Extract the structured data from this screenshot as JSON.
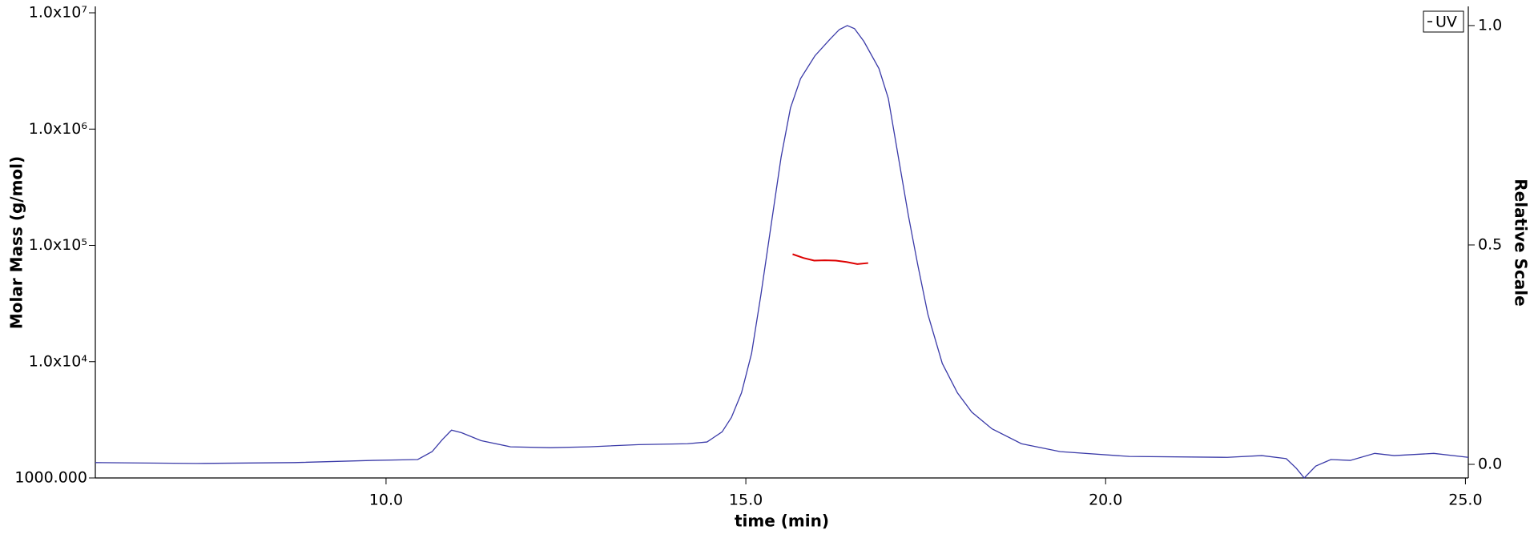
{
  "chart_data": {
    "type": "line",
    "xlabel": "time (min)",
    "ylabel": "Molar Mass (g/mol)",
    "y2label": "Relative Scale",
    "xlim": [
      5.96,
      25.04
    ],
    "xticks": [
      {
        "value": 10,
        "label": "10.0"
      },
      {
        "value": 15,
        "label": "15.0"
      },
      {
        "value": 20,
        "label": "20.0"
      },
      {
        "value": 25,
        "label": "25.0"
      }
    ],
    "ylim": [
      1000,
      11000000
    ],
    "yscale": "log",
    "yticks": [
      {
        "value": 1000,
        "label": "1000.000"
      },
      {
        "value": 10000,
        "label": "1.0x10⁴"
      },
      {
        "value": 100000,
        "label": "1.0x10⁵"
      },
      {
        "value": 1000000,
        "label": "1.0x10⁶"
      },
      {
        "value": 10000000,
        "label": "1.0x10⁷"
      }
    ],
    "y2lim": [
      -0.031,
      1.04
    ],
    "y2ticks": [
      {
        "value": 0,
        "label": "0.0"
      },
      {
        "value": 0.5,
        "label": "0.5"
      },
      {
        "value": 1,
        "label": "1.0"
      }
    ],
    "legend": "upper right",
    "series": [
      {
        "name": "UV",
        "color": "#3a3aa8",
        "axis": "y2",
        "x": [
          5.96,
          7.37,
          8.73,
          9.82,
          10.44,
          10.64,
          10.78,
          10.91,
          11.05,
          11.32,
          11.73,
          12.28,
          12.82,
          13.51,
          14.19,
          14.46,
          14.67,
          14.8,
          14.94,
          15.08,
          15.21,
          15.35,
          15.49,
          15.62,
          15.76,
          15.96,
          16.17,
          16.3,
          16.41,
          16.51,
          16.64,
          16.85,
          16.98,
          17.12,
          17.26,
          17.39,
          17.53,
          17.73,
          17.94,
          18.14,
          18.42,
          18.83,
          19.37,
          20.33,
          21.69,
          22.17,
          22.51,
          22.65,
          22.76,
          22.92,
          23.13,
          23.4,
          23.74,
          24.01,
          24.56,
          25.04
        ],
        "values": [
          0.004,
          0.002,
          0.004,
          0.009,
          0.011,
          0.029,
          0.056,
          0.078,
          0.072,
          0.054,
          0.04,
          0.038,
          0.04,
          0.045,
          0.047,
          0.051,
          0.074,
          0.107,
          0.163,
          0.253,
          0.387,
          0.544,
          0.7,
          0.812,
          0.879,
          0.931,
          0.969,
          0.991,
          1.0,
          0.993,
          0.964,
          0.902,
          0.834,
          0.7,
          0.566,
          0.454,
          0.342,
          0.23,
          0.163,
          0.119,
          0.081,
          0.047,
          0.029,
          0.018,
          0.016,
          0.02,
          0.013,
          -0.009,
          -0.031,
          -0.004,
          0.011,
          0.009,
          0.025,
          0.02,
          0.025,
          0.016
        ]
      },
      {
        "color": "#dd0000",
        "axis": "y",
        "x": [
          15.65,
          15.8,
          15.95,
          16.1,
          16.25,
          16.4,
          16.55,
          16.7
        ],
        "values": [
          84000,
          78000,
          74000,
          74500,
          74000,
          72000,
          69000,
          70500
        ]
      }
    ]
  }
}
